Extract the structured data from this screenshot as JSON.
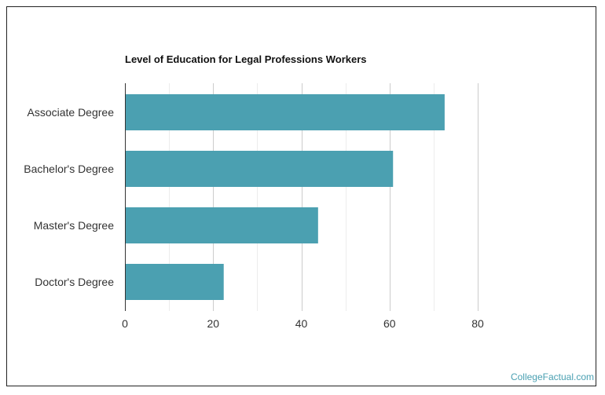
{
  "brand": "CollegeFactual.com",
  "chart_data": {
    "type": "bar",
    "orientation": "horizontal",
    "title": "Level of Education for Legal Professions Workers",
    "xlabel": "",
    "ylabel": "",
    "categories": [
      "Associate Degree",
      "Bachelor's Degree",
      "Master's Degree",
      "Doctor's Degree"
    ],
    "values": [
      72.5,
      60.8,
      43.8,
      22.4
    ],
    "xlim": [
      0,
      80
    ],
    "xticks": [
      0,
      20,
      40,
      60,
      80
    ],
    "grid": true,
    "legend": "none",
    "bar_color": "#4ba0b1",
    "grid_color": "#cccccc"
  }
}
